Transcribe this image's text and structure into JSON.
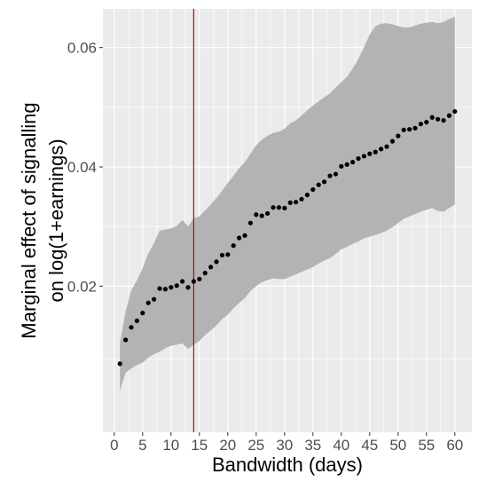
{
  "chart_data": {
    "type": "scatter",
    "xlabel": "Bandwidth (days)",
    "ylabel_lines": [
      "Marginal effect of signalling",
      "on log(1+earnings)"
    ],
    "xlim": [
      -2,
      63
    ],
    "ylim": [
      -0.0045,
      0.0665
    ],
    "x_ticks": [
      0,
      5,
      10,
      15,
      20,
      25,
      30,
      35,
      40,
      45,
      50,
      55,
      60
    ],
    "x_tick_labels": [
      "0",
      "5",
      "10",
      "15",
      "20",
      "25",
      "30",
      "35",
      "40",
      "45",
      "50",
      "55",
      "60"
    ],
    "y_ticks": [
      0.02,
      0.04,
      0.06
    ],
    "y_tick_labels": [
      "0.02",
      "0.04",
      "0.06"
    ],
    "grid": true,
    "vline": {
      "x": 14,
      "color": "#cc0000"
    },
    "colors": {
      "panel": "#ebebeb",
      "grid_major": "#ffffff",
      "ribbon": "#b3b3b3",
      "point": "#000000",
      "tick_text": "#4d4d4d"
    },
    "series": [
      {
        "x": [
          1,
          2,
          3,
          4,
          5,
          6,
          7,
          8,
          9,
          10,
          11,
          12,
          13,
          14,
          15,
          16,
          17,
          18,
          19,
          20,
          21,
          22,
          23,
          24,
          25,
          26,
          27,
          28,
          29,
          30,
          31,
          32,
          33,
          34,
          35,
          36,
          37,
          38,
          39,
          40,
          41,
          42,
          43,
          44,
          45,
          46,
          47,
          48,
          49,
          50,
          51,
          52,
          53,
          54,
          55,
          56,
          57,
          58,
          59,
          60
        ],
        "y": [
          0.007,
          0.011,
          0.0131,
          0.0142,
          0.0155,
          0.0172,
          0.0178,
          0.0196,
          0.0195,
          0.0198,
          0.0201,
          0.0208,
          0.0198,
          0.0208,
          0.0212,
          0.0222,
          0.0232,
          0.0241,
          0.0252,
          0.0253,
          0.0268,
          0.0281,
          0.0285,
          0.0306,
          0.032,
          0.0318,
          0.0322,
          0.0332,
          0.0332,
          0.0331,
          0.034,
          0.0341,
          0.0346,
          0.0353,
          0.0362,
          0.037,
          0.0375,
          0.0385,
          0.0388,
          0.0401,
          0.0404,
          0.0408,
          0.0414,
          0.0418,
          0.0422,
          0.0425,
          0.043,
          0.0434,
          0.0443,
          0.0452,
          0.0462,
          0.0463,
          0.0465,
          0.0472,
          0.0475,
          0.0483,
          0.048,
          0.0478,
          0.0486,
          0.0493
        ],
        "ymin": [
          0.0025,
          0.0055,
          0.0062,
          0.0068,
          0.0072,
          0.008,
          0.0086,
          0.009,
          0.0096,
          0.01,
          0.0102,
          0.0104,
          0.0095,
          0.0102,
          0.0108,
          0.0118,
          0.0126,
          0.0134,
          0.0145,
          0.0152,
          0.0163,
          0.0172,
          0.018,
          0.0192,
          0.02,
          0.0207,
          0.021,
          0.0213,
          0.0212,
          0.0212,
          0.0216,
          0.022,
          0.0224,
          0.0228,
          0.0232,
          0.0238,
          0.0243,
          0.0247,
          0.0254,
          0.0262,
          0.0266,
          0.0271,
          0.0275,
          0.028,
          0.0283,
          0.0286,
          0.0289,
          0.0293,
          0.0299,
          0.0306,
          0.0313,
          0.0317,
          0.0321,
          0.0325,
          0.0328,
          0.0331,
          0.0326,
          0.0325,
          0.0331,
          0.0337
        ],
        "ymax": [
          0.0105,
          0.0158,
          0.0193,
          0.021,
          0.023,
          0.0255,
          0.0272,
          0.0293,
          0.0295,
          0.0297,
          0.0301,
          0.0311,
          0.03,
          0.0314,
          0.0317,
          0.0327,
          0.0337,
          0.0348,
          0.036,
          0.0373,
          0.0385,
          0.0398,
          0.0408,
          0.0422,
          0.0436,
          0.0446,
          0.0452,
          0.0457,
          0.0459,
          0.0464,
          0.0473,
          0.0478,
          0.0486,
          0.0495,
          0.0503,
          0.051,
          0.0517,
          0.0523,
          0.0533,
          0.0542,
          0.0551,
          0.0565,
          0.0581,
          0.0601,
          0.0622,
          0.0636,
          0.064,
          0.0641,
          0.0639,
          0.0636,
          0.0634,
          0.0634,
          0.0637,
          0.064,
          0.0642,
          0.0643,
          0.0641,
          0.0643,
          0.0648,
          0.0652
        ]
      }
    ]
  }
}
